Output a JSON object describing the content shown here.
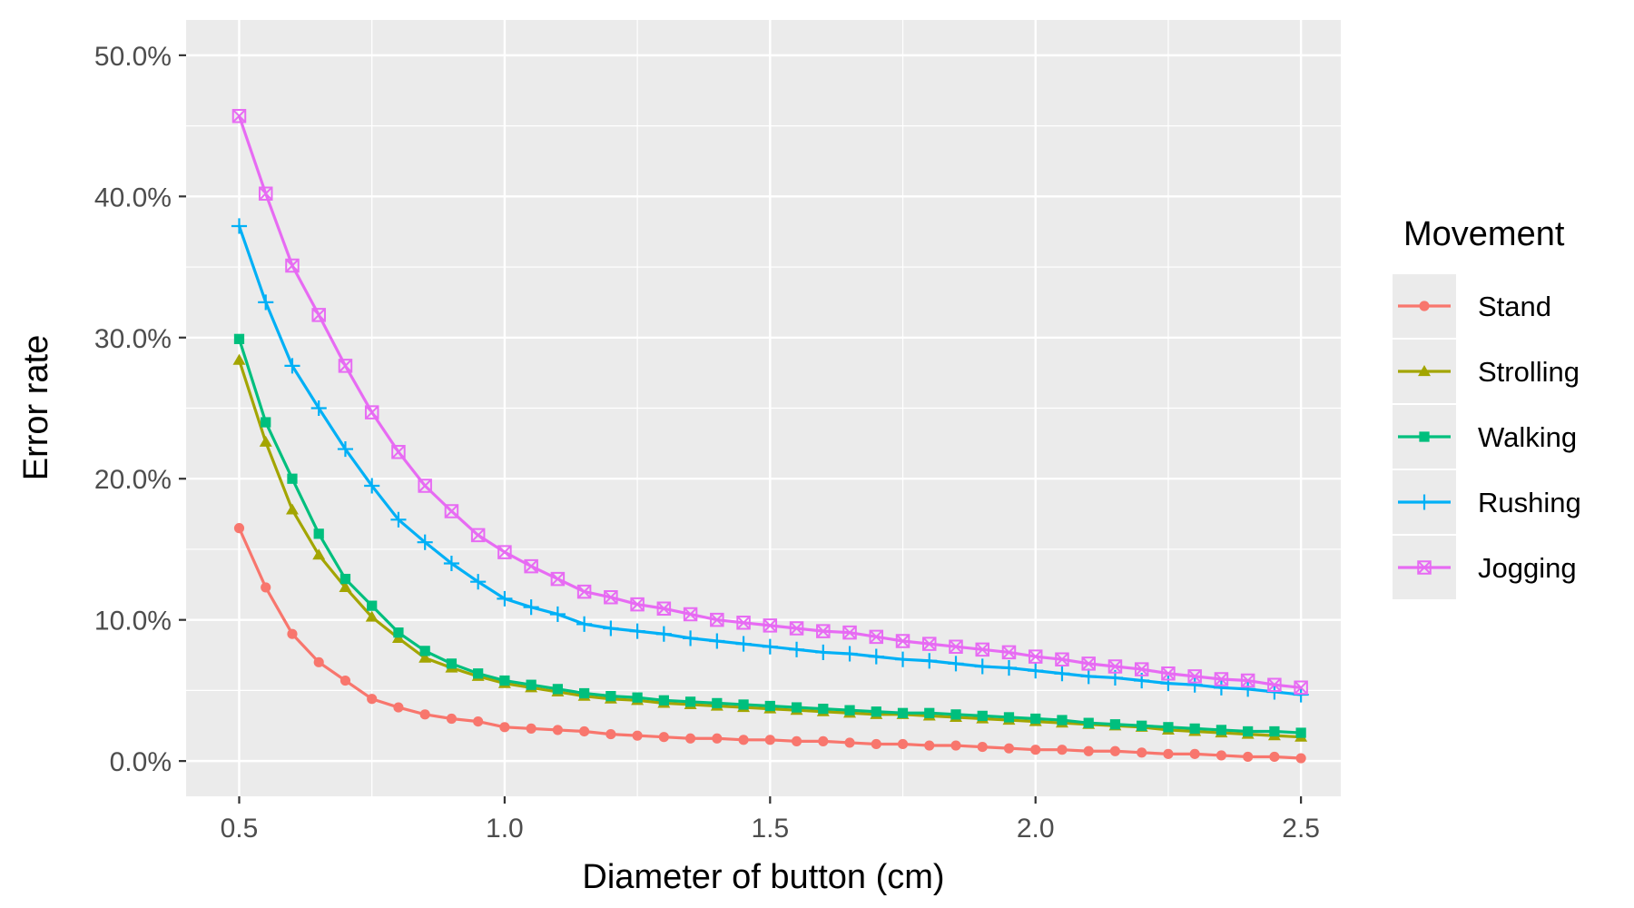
{
  "chart_data": {
    "type": "line",
    "xlabel": "Diameter of button (cm)",
    "ylabel": "Error rate",
    "xlim": [
      0.4,
      2.575
    ],
    "ylim": [
      -0.025,
      0.525
    ],
    "x_ticks": [
      0.5,
      1.0,
      1.5,
      2.0,
      2.5
    ],
    "x_tick_labels": [
      "0.5",
      "1.0",
      "1.5",
      "2.0",
      "2.5"
    ],
    "y_ticks": [
      0.0,
      0.1,
      0.2,
      0.3,
      0.4,
      0.5
    ],
    "y_tick_labels": [
      "0.0%",
      "10.0%",
      "20.0%",
      "30.0%",
      "40.0%",
      "50.0%"
    ],
    "grid": true,
    "legend": {
      "title": "Movement",
      "position": "right"
    },
    "x": [
      0.5,
      0.55,
      0.6,
      0.65,
      0.7,
      0.75,
      0.8,
      0.85,
      0.9,
      0.95,
      1.0,
      1.05,
      1.1,
      1.15,
      1.2,
      1.25,
      1.3,
      1.35,
      1.4,
      1.45,
      1.5,
      1.55,
      1.6,
      1.65,
      1.7,
      1.75,
      1.8,
      1.85,
      1.9,
      1.95,
      2.0,
      2.05,
      2.1,
      2.15,
      2.2,
      2.25,
      2.3,
      2.35,
      2.4,
      2.45,
      2.5
    ],
    "series": [
      {
        "name": "Stand",
        "color": "#F8766D",
        "marker": "circle",
        "values": [
          0.165,
          0.123,
          0.09,
          0.07,
          0.057,
          0.044,
          0.038,
          0.033,
          0.03,
          0.028,
          0.024,
          0.023,
          0.022,
          0.021,
          0.019,
          0.018,
          0.017,
          0.016,
          0.016,
          0.015,
          0.015,
          0.014,
          0.014,
          0.013,
          0.012,
          0.012,
          0.011,
          0.011,
          0.01,
          0.009,
          0.008,
          0.008,
          0.007,
          0.007,
          0.006,
          0.005,
          0.005,
          0.004,
          0.003,
          0.003,
          0.002
        ]
      },
      {
        "name": "Strolling",
        "color": "#A3A500",
        "marker": "triangle",
        "values": [
          0.284,
          0.226,
          0.178,
          0.146,
          0.123,
          0.102,
          0.087,
          0.073,
          0.066,
          0.06,
          0.055,
          0.052,
          0.049,
          0.046,
          0.044,
          0.043,
          0.041,
          0.04,
          0.039,
          0.038,
          0.037,
          0.036,
          0.035,
          0.034,
          0.033,
          0.033,
          0.032,
          0.031,
          0.03,
          0.029,
          0.028,
          0.027,
          0.026,
          0.025,
          0.024,
          0.022,
          0.021,
          0.02,
          0.019,
          0.018,
          0.017
        ]
      },
      {
        "name": "Walking",
        "color": "#00BF7D",
        "marker": "square",
        "values": [
          0.299,
          0.24,
          0.2,
          0.161,
          0.129,
          0.11,
          0.091,
          0.078,
          0.069,
          0.062,
          0.057,
          0.054,
          0.051,
          0.048,
          0.046,
          0.045,
          0.043,
          0.042,
          0.041,
          0.04,
          0.039,
          0.038,
          0.037,
          0.036,
          0.035,
          0.034,
          0.034,
          0.033,
          0.032,
          0.031,
          0.03,
          0.029,
          0.027,
          0.026,
          0.025,
          0.024,
          0.023,
          0.022,
          0.021,
          0.021,
          0.02
        ]
      },
      {
        "name": "Rushing",
        "color": "#00B0F6",
        "marker": "plus",
        "values": [
          0.379,
          0.325,
          0.28,
          0.25,
          0.221,
          0.195,
          0.171,
          0.155,
          0.14,
          0.127,
          0.115,
          0.109,
          0.104,
          0.097,
          0.094,
          0.092,
          0.09,
          0.087,
          0.085,
          0.083,
          0.081,
          0.079,
          0.077,
          0.076,
          0.074,
          0.072,
          0.071,
          0.069,
          0.067,
          0.066,
          0.064,
          0.062,
          0.06,
          0.059,
          0.057,
          0.055,
          0.054,
          0.052,
          0.051,
          0.049,
          0.047
        ]
      },
      {
        "name": "Jogging",
        "color": "#E76BF3",
        "marker": "square-cross",
        "values": [
          0.457,
          0.402,
          0.351,
          0.316,
          0.28,
          0.247,
          0.219,
          0.195,
          0.177,
          0.16,
          0.148,
          0.138,
          0.129,
          0.12,
          0.116,
          0.111,
          0.108,
          0.104,
          0.1,
          0.098,
          0.096,
          0.094,
          0.092,
          0.091,
          0.088,
          0.085,
          0.083,
          0.081,
          0.079,
          0.077,
          0.074,
          0.072,
          0.069,
          0.067,
          0.065,
          0.062,
          0.06,
          0.058,
          0.057,
          0.054,
          0.052
        ]
      }
    ]
  }
}
